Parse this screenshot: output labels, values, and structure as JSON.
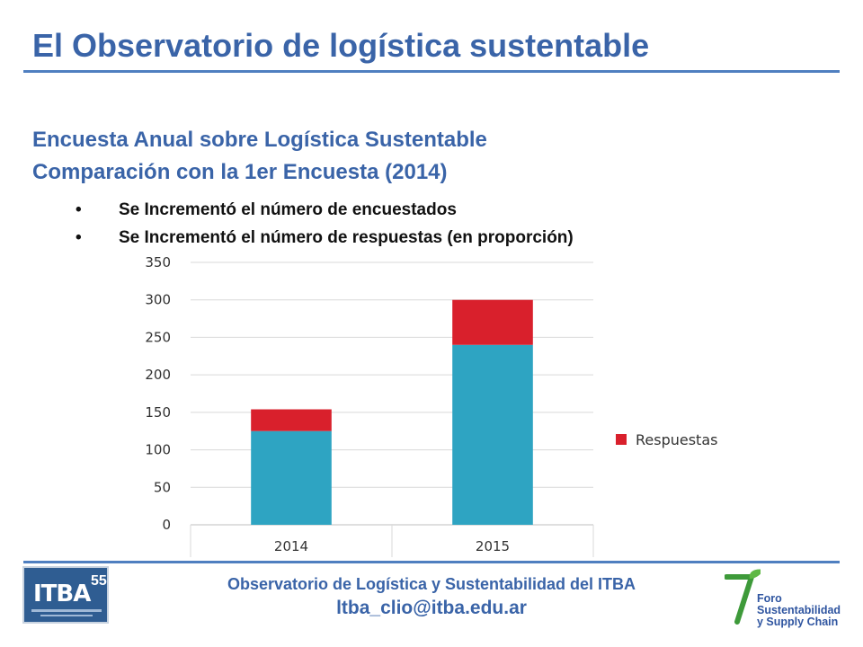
{
  "header": {
    "title": "El Observatorio de logística sustentable"
  },
  "content": {
    "subtitle_1": "Encuesta Anual sobre Logística Sustentable",
    "subtitle_2": "Comparación con la 1er  Encuesta (2014)",
    "bullets": [
      "Se Incrementó el número de encuestados",
      "Se Incrementó el número de respuestas (en proporción)"
    ],
    "bullet_glyph": "•"
  },
  "chart_data": {
    "type": "bar",
    "stacked": true,
    "categories": [
      "2014",
      "2015"
    ],
    "series": [
      {
        "values": [
          125,
          240
        ],
        "color": "#2ea4c2"
      },
      {
        "name": "Respuestas",
        "values": [
          29,
          60
        ],
        "color": "#d9202c"
      }
    ],
    "y_ticks": [
      0,
      50,
      100,
      150,
      200,
      250,
      300,
      350
    ],
    "ylim": [
      0,
      350
    ],
    "grid": true,
    "legend_position": "right"
  },
  "footer": {
    "org": "Observatorio de Logística y Sustentabilidad del ITBA",
    "email": "ltba_clio@itba.edu.ar",
    "itba_logo_text": "ITBA",
    "itba_logo_number": "55",
    "foro_logo_lines": [
      "Foro",
      "Sustentabilidad",
      "y Supply Chain"
    ]
  }
}
